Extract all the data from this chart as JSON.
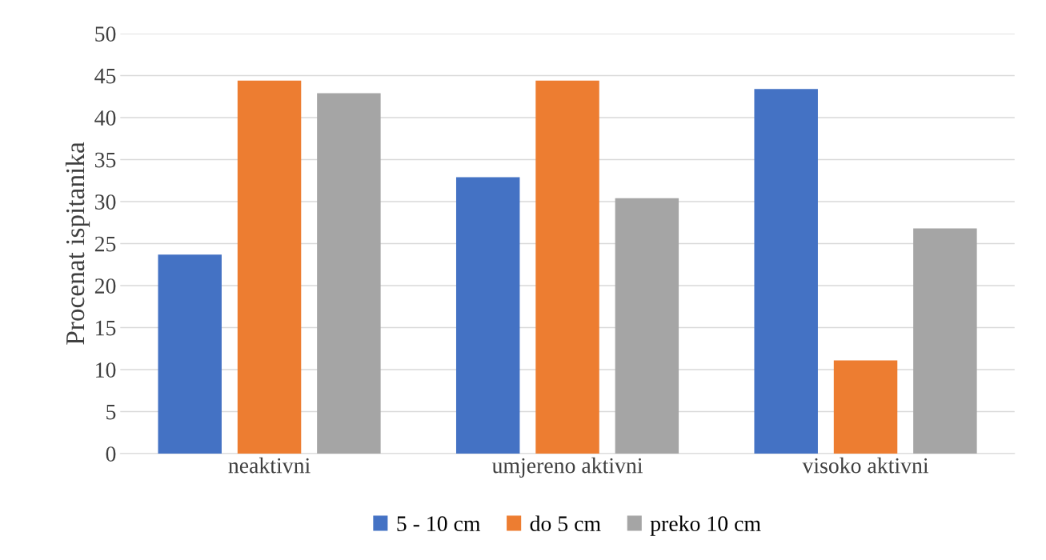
{
  "chart_data": {
    "type": "bar",
    "ylabel": "Procenat ispitanika",
    "categories": [
      "neaktivni",
      "umjereno aktivni",
      "visoko aktivni"
    ],
    "series": [
      {
        "name": "5 - 10 cm",
        "color": "#4472c4",
        "values": [
          23.7,
          32.9,
          43.4
        ]
      },
      {
        "name": "do 5 cm",
        "color": "#ed7d31",
        "values": [
          44.4,
          44.4,
          11.1
        ]
      },
      {
        "name": "preko 10 cm",
        "color": "#a5a5a5",
        "values": [
          42.9,
          30.4,
          26.8
        ]
      }
    ],
    "ylim": [
      0,
      50
    ],
    "yticks": [
      0,
      5,
      10,
      15,
      20,
      25,
      30,
      35,
      40,
      45,
      50
    ],
    "grid": "y",
    "legend": "bottom"
  }
}
